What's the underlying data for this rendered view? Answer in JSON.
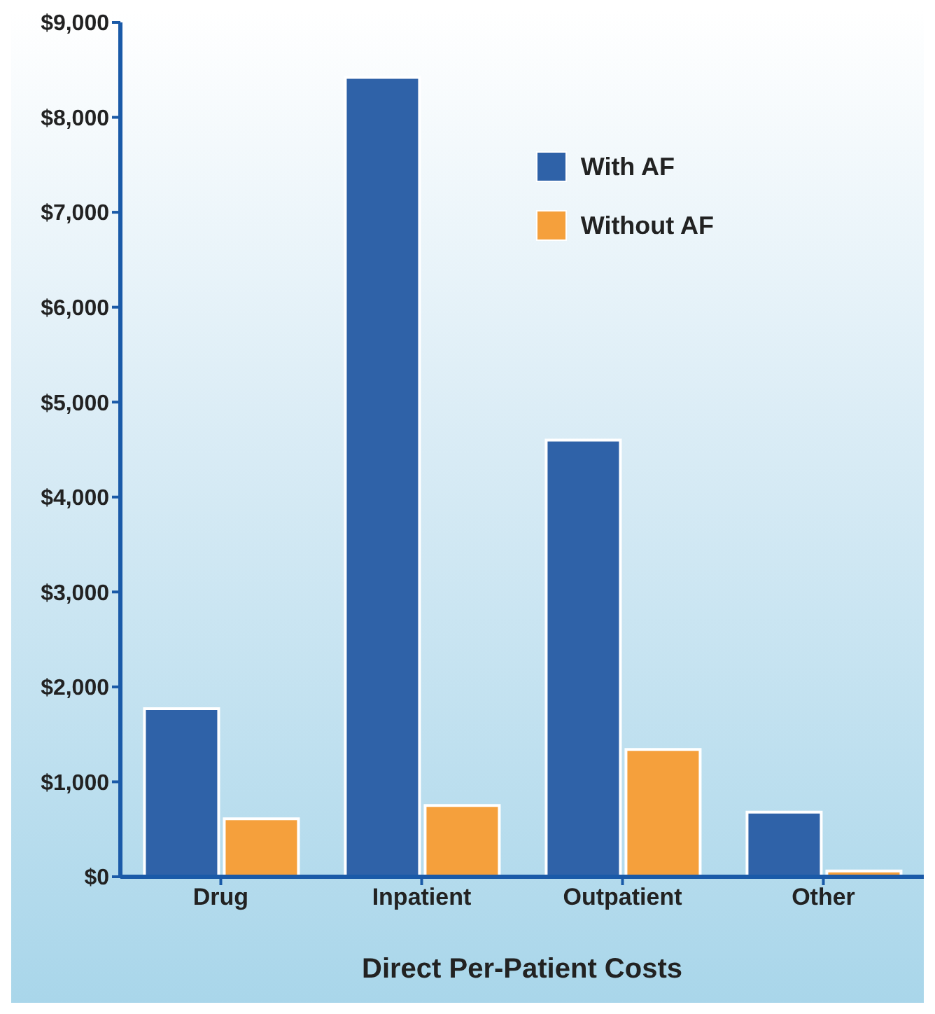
{
  "chart_data": {
    "type": "bar",
    "xlabel": "Direct Per-Patient Costs",
    "categories": [
      "Drug",
      "Inpatient",
      "Outpatient",
      "Other"
    ],
    "series": [
      {
        "name": "With AF",
        "color": "#2f62a8",
        "values": [
          1770,
          8420,
          4600,
          680
        ]
      },
      {
        "name": "Without AF",
        "color": "#f5a03c",
        "values": [
          610,
          750,
          1340,
          60
        ]
      }
    ],
    "ylim": [
      0,
      9000
    ],
    "yticks": [
      {
        "value": 0,
        "label": "$0"
      },
      {
        "value": 1000,
        "label": "$1,000"
      },
      {
        "value": 2000,
        "label": "$2,000"
      },
      {
        "value": 3000,
        "label": "$3,000"
      },
      {
        "value": 4000,
        "label": "$4,000"
      },
      {
        "value": 5000,
        "label": "$5,000"
      },
      {
        "value": 6000,
        "label": "$6,000"
      },
      {
        "value": 7000,
        "label": "$7,000"
      },
      {
        "value": 8000,
        "label": "$8,000"
      },
      {
        "value": 9000,
        "label": "$9,000"
      }
    ],
    "grid": false,
    "legend": "top right"
  }
}
